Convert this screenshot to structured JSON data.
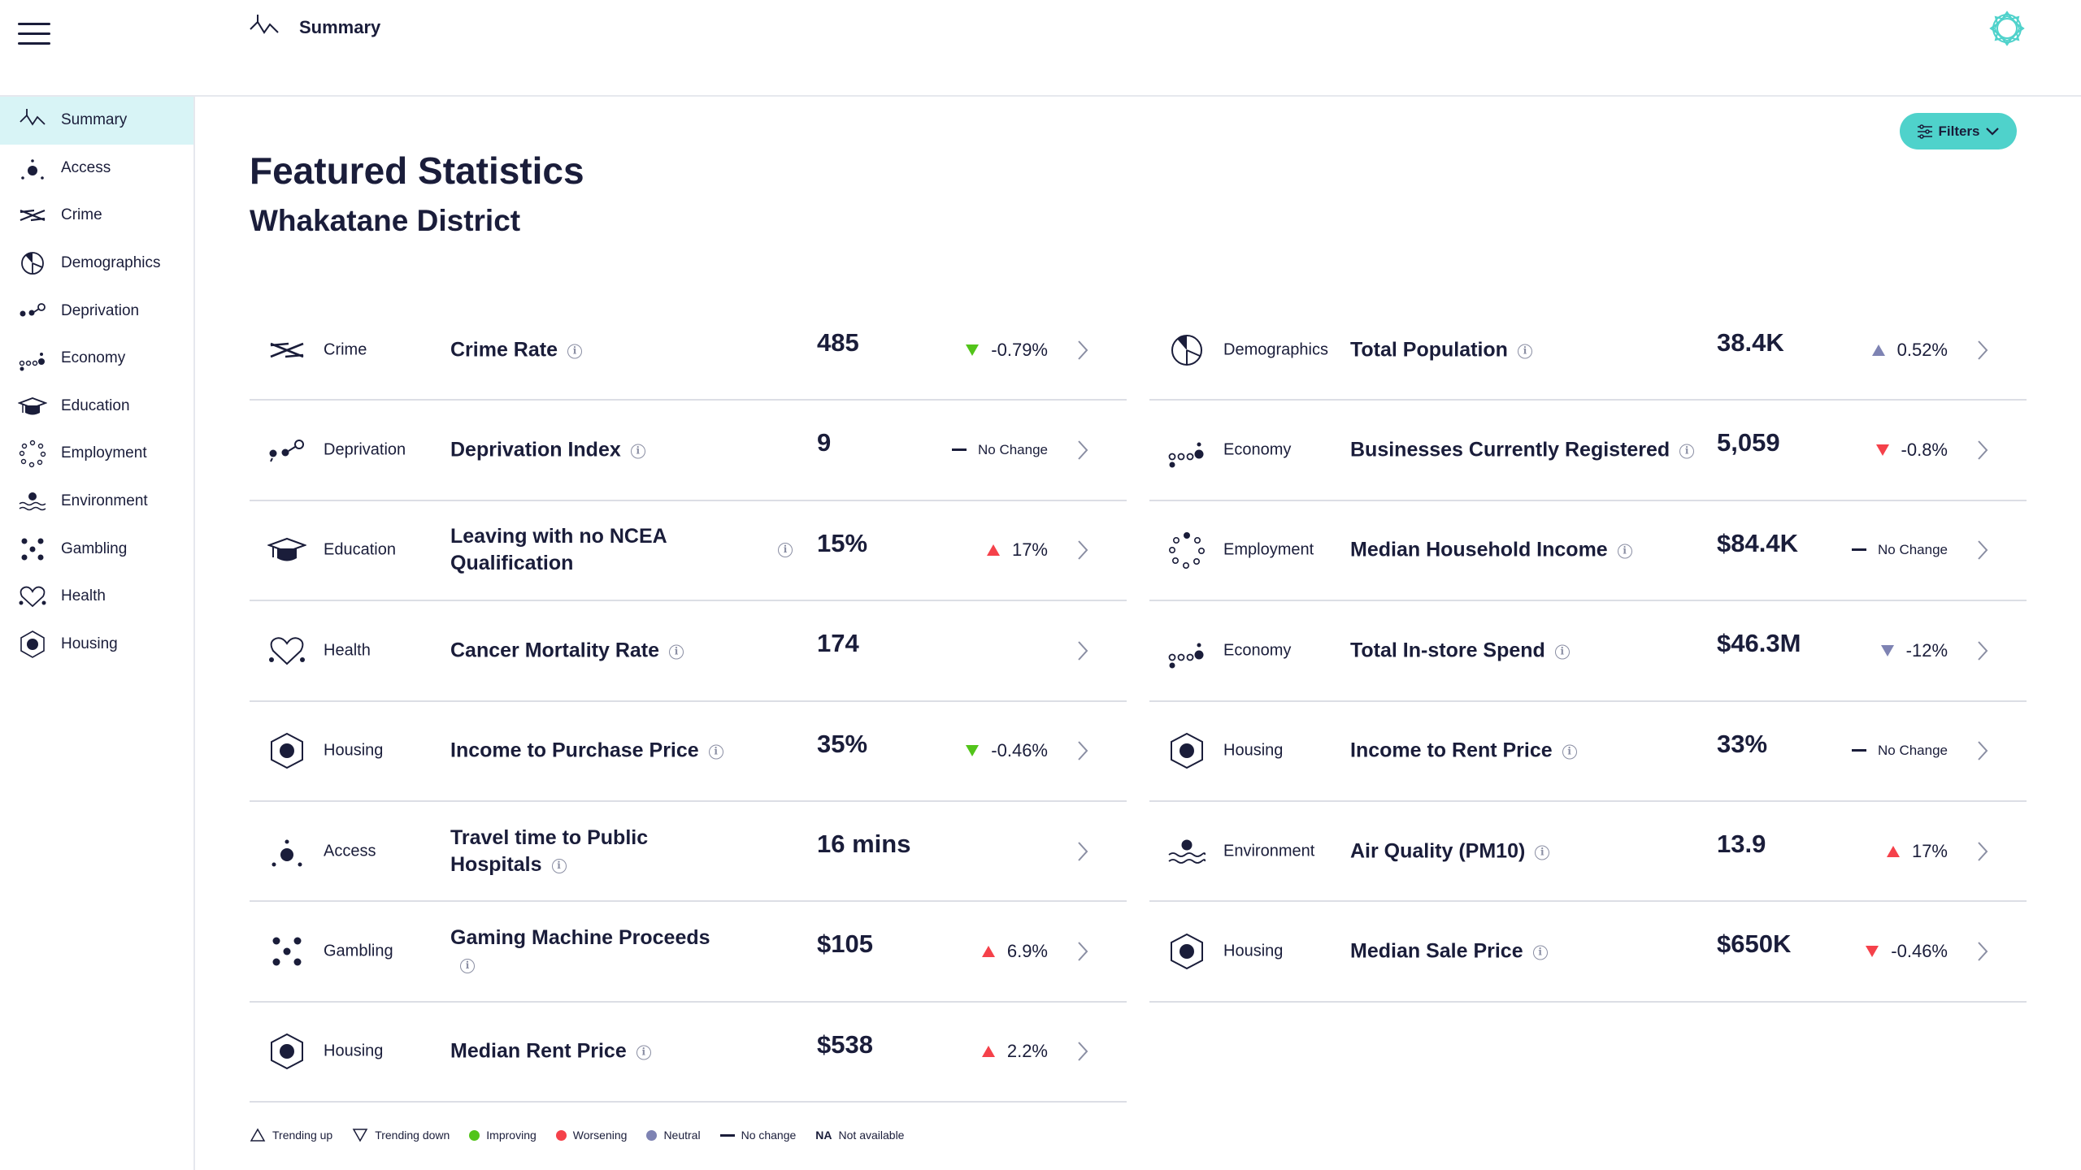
{
  "header": {
    "page_title": "Summary"
  },
  "sidebar": {
    "items": [
      {
        "label": "Summary",
        "icon": "summary-icon",
        "active": true
      },
      {
        "label": "Access",
        "icon": "access-icon"
      },
      {
        "label": "Crime",
        "icon": "crime-icon"
      },
      {
        "label": "Demographics",
        "icon": "demographics-icon"
      },
      {
        "label": "Deprivation",
        "icon": "deprivation-icon"
      },
      {
        "label": "Economy",
        "icon": "economy-icon"
      },
      {
        "label": "Education",
        "icon": "education-icon"
      },
      {
        "label": "Employment",
        "icon": "employment-icon"
      },
      {
        "label": "Environment",
        "icon": "environment-icon"
      },
      {
        "label": "Gambling",
        "icon": "gambling-icon"
      },
      {
        "label": "Health",
        "icon": "health-icon"
      },
      {
        "label": "Housing",
        "icon": "housing-icon"
      }
    ]
  },
  "filters": {
    "label": "Filters"
  },
  "main": {
    "title": "Featured Statistics",
    "subtitle": "Whakatane District"
  },
  "stats_left": [
    {
      "category": "Crime",
      "metric": "Crime Rate",
      "value": "485",
      "change": "-0.79%",
      "trend": "down",
      "status": "improving"
    },
    {
      "category": "Deprivation",
      "metric": "Deprivation Index",
      "value": "9",
      "change": "No Change",
      "trend": "none",
      "status": "neutral"
    },
    {
      "category": "Education",
      "metric": "Leaving with no NCEA Qualification",
      "value": "15%",
      "change": "17%",
      "trend": "up",
      "status": "worsening"
    },
    {
      "category": "Health",
      "metric": "Cancer Mortality Rate",
      "value": "174",
      "change": "",
      "trend": "",
      "status": ""
    },
    {
      "category": "Housing",
      "metric": "Income to Purchase Price",
      "value": "35%",
      "change": "-0.46%",
      "trend": "down",
      "status": "improving"
    },
    {
      "category": "Access",
      "metric": "Travel time to Public Hospitals",
      "value": "16 mins",
      "change": "",
      "trend": "",
      "status": ""
    },
    {
      "category": "Gambling",
      "metric": "Gaming Machine Proceeds",
      "value": "$105",
      "change": "6.9%",
      "trend": "up",
      "status": "worsening"
    },
    {
      "category": "Housing",
      "metric": "Median Rent Price",
      "value": "$538",
      "change": "2.2%",
      "trend": "up",
      "status": "worsening"
    }
  ],
  "stats_right": [
    {
      "category": "Demographics",
      "metric": "Total Population",
      "value": "38.4K",
      "change": "0.52%",
      "trend": "up",
      "status": "neutral"
    },
    {
      "category": "Economy",
      "metric": "Businesses Currently Registered",
      "value": "5,059",
      "change": "-0.8%",
      "trend": "down",
      "status": "worsening"
    },
    {
      "category": "Employment",
      "metric": "Median Household Income",
      "value": "$84.4K",
      "change": "No Change",
      "trend": "none",
      "status": "neutral"
    },
    {
      "category": "Economy",
      "metric": "Total In-store Spend",
      "value": "$46.3M",
      "change": "-12%",
      "trend": "down",
      "status": "neutral"
    },
    {
      "category": "Housing",
      "metric": "Income to Rent Price",
      "value": "33%",
      "change": "No Change",
      "trend": "none",
      "status": "neutral"
    },
    {
      "category": "Environment",
      "metric": "Air Quality (PM10)",
      "value": "13.9",
      "change": "17%",
      "trend": "up",
      "status": "worsening"
    },
    {
      "category": "Housing",
      "metric": "Median Sale Price",
      "value": "$650K",
      "change": "-0.46%",
      "trend": "down",
      "status": "worsening"
    }
  ],
  "legend": {
    "trending_up": "Trending up",
    "trending_down": "Trending down",
    "improving": "Improving",
    "worsening": "Worsening",
    "neutral": "Neutral",
    "no_change": "No change",
    "na_abbr": "NA",
    "not_available": "Not available"
  },
  "colors": {
    "ink": "#1a1d3a",
    "improving": "#52c41a",
    "worsening": "#f5414a",
    "neutral": "#7e83b3",
    "accent": "#4fd2cb",
    "active_bg": "#d8f4f6"
  }
}
